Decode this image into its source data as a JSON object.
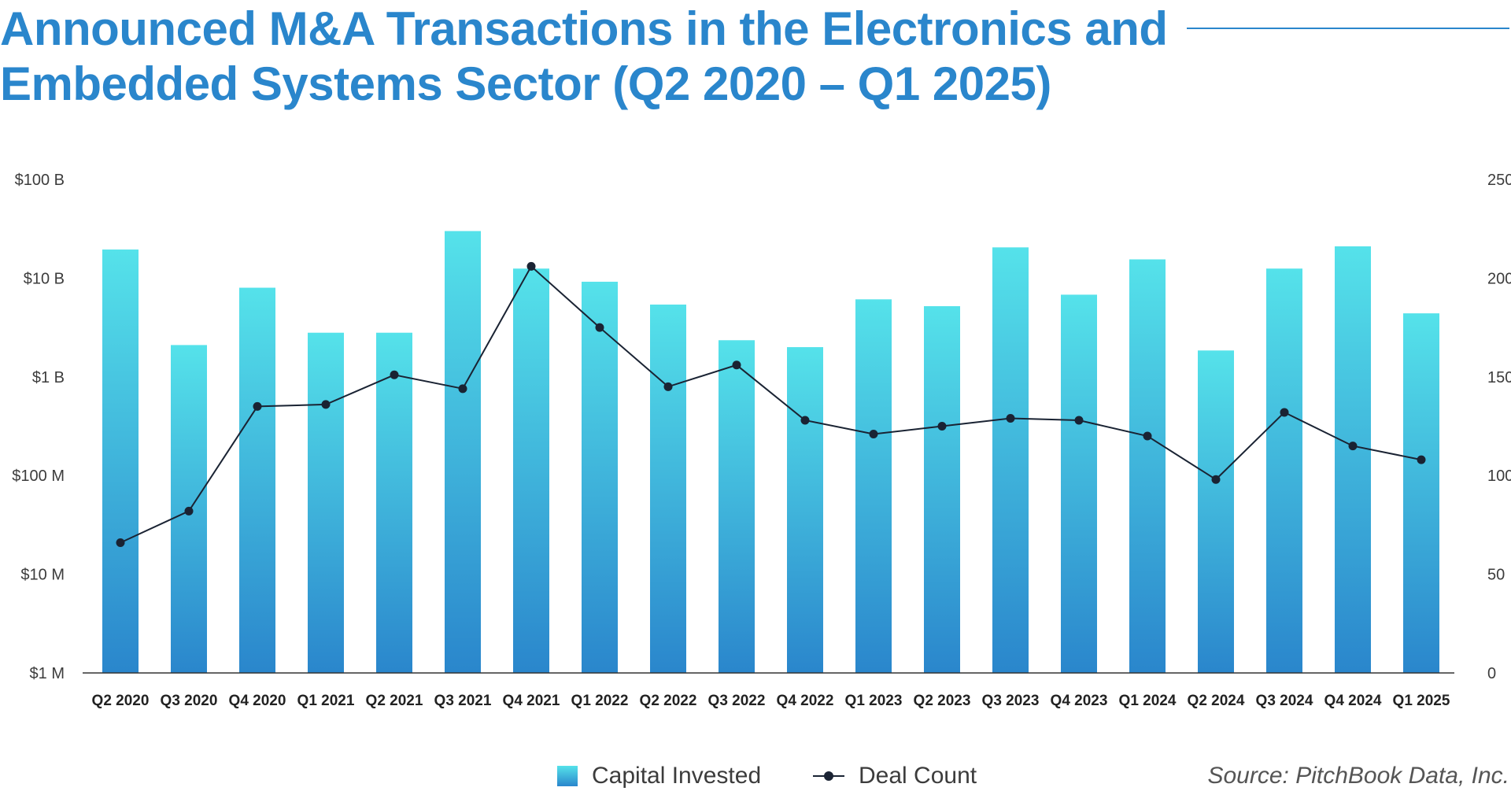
{
  "title": "Announced M&A Transactions in the Electronics and Embedded Systems Sector (Q2 2020 – Q1 2025)",
  "source": "Source: PitchBook Data, Inc.",
  "colors": {
    "title": "#2a86cc",
    "bar_top": "#55e2ea",
    "bar_bottom": "#2a86cc",
    "line": "#1a2333",
    "axis": "#333333",
    "text": "#3c3c3c"
  },
  "chart_data": {
    "type": "bar",
    "categories": [
      "Q2 2020",
      "Q3 2020",
      "Q4 2020",
      "Q1 2021",
      "Q2 2021",
      "Q3 2021",
      "Q4 2021",
      "Q1 2022",
      "Q2 2022",
      "Q3 2022",
      "Q4 2022",
      "Q1 2023",
      "Q2 2023",
      "Q3 2023",
      "Q4 2023",
      "Q1 2024",
      "Q2 2024",
      "Q3 2024",
      "Q4 2024",
      "Q1 2025"
    ],
    "series": [
      {
        "name": "Capital Invested",
        "type": "bar",
        "axis": "left",
        "scale": "log",
        "unit": "USD",
        "values": [
          19500000000,
          2100000000,
          8000000000,
          2800000000,
          2800000000,
          30000000000,
          12500000000,
          9200000000,
          5400000000,
          2350000000,
          2000000000,
          6100000000,
          5200000000,
          20500000000,
          6800000000,
          15500000000,
          1850000000,
          12500000000,
          21000000000,
          4400000000
        ]
      },
      {
        "name": "Deal Count",
        "type": "line",
        "axis": "right",
        "values": [
          66,
          82,
          135,
          136,
          151,
          144,
          206,
          175,
          145,
          156,
          128,
          121,
          125,
          129,
          128,
          120,
          98,
          132,
          115,
          108
        ]
      }
    ],
    "y_left": {
      "scale": "log",
      "ylim": [
        1000000,
        100000000000
      ],
      "ticks": [
        1000000,
        10000000,
        100000000,
        1000000000,
        10000000000,
        100000000000
      ],
      "tick_labels": [
        "$1 M",
        "$10 M",
        "$100 M",
        "$1 B",
        "$10 B",
        "$100 B"
      ]
    },
    "y_right": {
      "scale": "linear",
      "ylim": [
        0,
        250
      ],
      "ticks": [
        0,
        50,
        100,
        150,
        200,
        250
      ],
      "tick_labels": [
        "0",
        "50",
        "100",
        "150",
        "200",
        "250"
      ]
    },
    "grid": false,
    "legend": {
      "position": "bottom",
      "entries": [
        "Capital Invested",
        "Deal Count"
      ]
    }
  }
}
